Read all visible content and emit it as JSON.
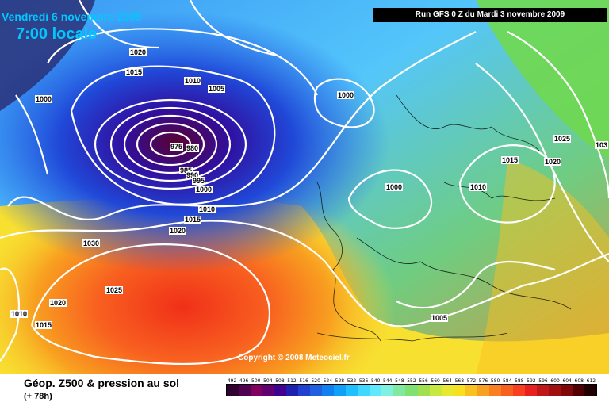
{
  "header": {
    "date": "Vendredi 6 novembre 2009",
    "time": "7:00 locale",
    "run": "Run GFS 0 Z du Mardi 3 novembre 2009"
  },
  "copyright": "Copyright © 2008 Meteociel.fr",
  "footer": {
    "title": "Géop. Z500 & pression au sol",
    "subtitle": "(+ 78h)"
  },
  "isobar_labels": [
    "1020",
    "1015",
    "1010",
    "1005",
    "1000",
    "975",
    "980",
    "985",
    "990",
    "995",
    "1000",
    "1010",
    "1015",
    "1020",
    "1030",
    "1025",
    "1020",
    "1010",
    "1015",
    "1000",
    "1000",
    "1010",
    "1015",
    "1020",
    "1025",
    "103",
    "1005"
  ],
  "scale": {
    "values": [
      "492",
      "496",
      "500",
      "504",
      "508",
      "512",
      "516",
      "520",
      "524",
      "528",
      "532",
      "536",
      "540",
      "544",
      "548",
      "552",
      "556",
      "560",
      "564",
      "568",
      "572",
      "576",
      "580",
      "584",
      "588",
      "592",
      "596",
      "600",
      "604",
      "608",
      "612"
    ],
    "colors": [
      "#300030",
      "#500050",
      "#800060",
      "#600070",
      "#400090",
      "#2020b0",
      "#2040d0",
      "#2060e0",
      "#1080f0",
      "#10a0f8",
      "#20c0ff",
      "#40d8ff",
      "#60e8ff",
      "#80f0e0",
      "#80e8a0",
      "#80e070",
      "#a0e050",
      "#c8e840",
      "#e8e830",
      "#f8e020",
      "#f8c020",
      "#f8a020",
      "#f88020",
      "#f86020",
      "#f84020",
      "#e82020",
      "#c01818",
      "#a01010",
      "#800808",
      "#500000",
      "#200000"
    ]
  }
}
